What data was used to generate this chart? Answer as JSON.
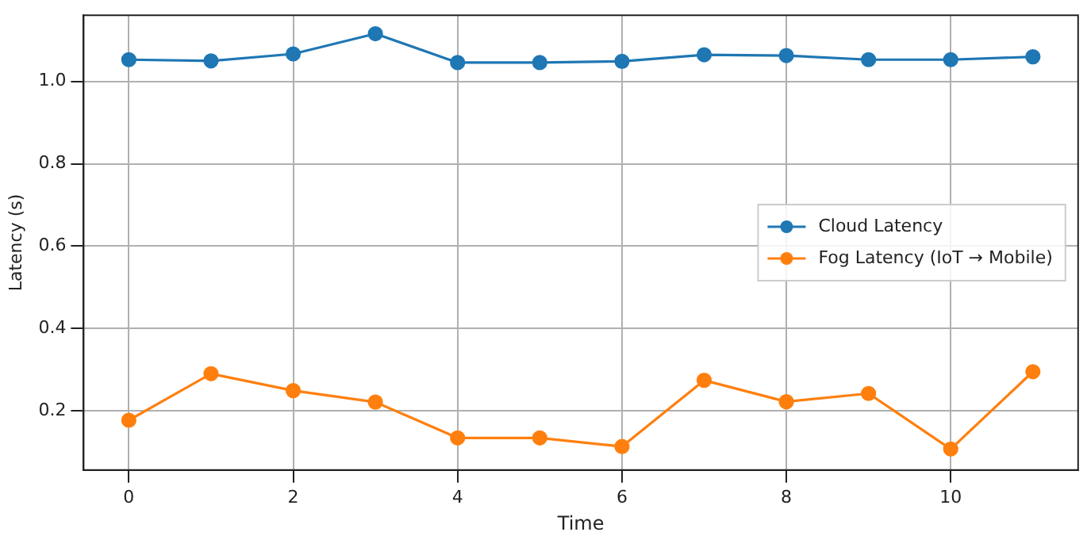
{
  "chart_data": {
    "type": "line",
    "xlabel": "Time",
    "ylabel": "Latency (s)",
    "x": [
      0,
      1,
      2,
      3,
      4,
      5,
      6,
      7,
      8,
      9,
      10,
      11
    ],
    "series": [
      {
        "name": "Cloud Latency",
        "color": "#1f77b4",
        "values": [
          1.053,
          1.05,
          1.067,
          1.116,
          1.046,
          1.046,
          1.049,
          1.065,
          1.063,
          1.053,
          1.053,
          1.06
        ]
      },
      {
        "name": "Fog Latency (IoT → Mobile)",
        "color": "#ff7f0e",
        "values": [
          0.177,
          0.29,
          0.249,
          0.221,
          0.134,
          0.134,
          0.113,
          0.274,
          0.222,
          0.242,
          0.107,
          0.295
        ]
      }
    ],
    "xlim": [
      -0.55,
      11.55
    ],
    "xticks": [
      0,
      2,
      4,
      6,
      8,
      10
    ],
    "ylim": [
      0.056,
      1.161
    ],
    "yticks": [
      {
        "value": 0.2,
        "label": "0.2"
      },
      {
        "value": 0.4,
        "label": "0.4"
      },
      {
        "value": 0.6,
        "label": "0.6"
      },
      {
        "value": 0.8,
        "label": "0.8"
      },
      {
        "value": 1.0,
        "label": "1.0"
      }
    ],
    "grid": true,
    "legend": "right",
    "marker": "circle",
    "line_style": "solid"
  }
}
